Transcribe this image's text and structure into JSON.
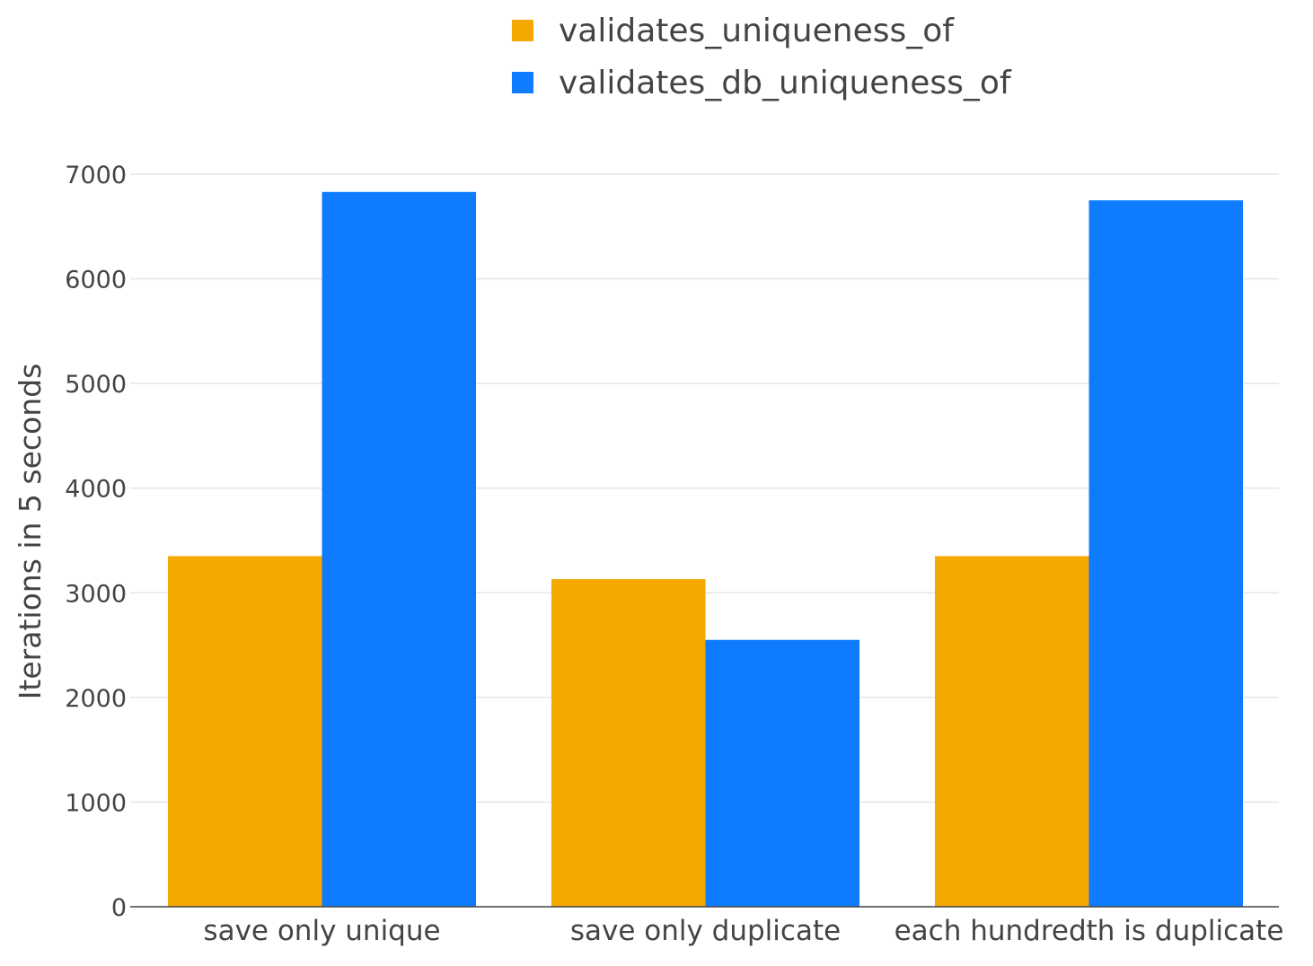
{
  "chart_data": {
    "type": "bar",
    "categories": [
      "save only unique",
      "save only duplicate",
      "each hundredth is duplicate"
    ],
    "series": [
      {
        "name": "validates_uniqueness_of",
        "color": "#F5A800",
        "values": [
          3350,
          3130,
          3350
        ]
      },
      {
        "name": "validates_db_uniqueness_of",
        "color": "#0F7CFF",
        "values": [
          6830,
          2550,
          6750
        ]
      }
    ],
    "xlabel": "",
    "ylabel": "Iterations in 5 seconds",
    "ylim": [
      0,
      7000
    ],
    "yticks": [
      0,
      1000,
      2000,
      3000,
      4000,
      5000,
      6000,
      7000
    ],
    "grid": true,
    "legend_position": "top"
  }
}
